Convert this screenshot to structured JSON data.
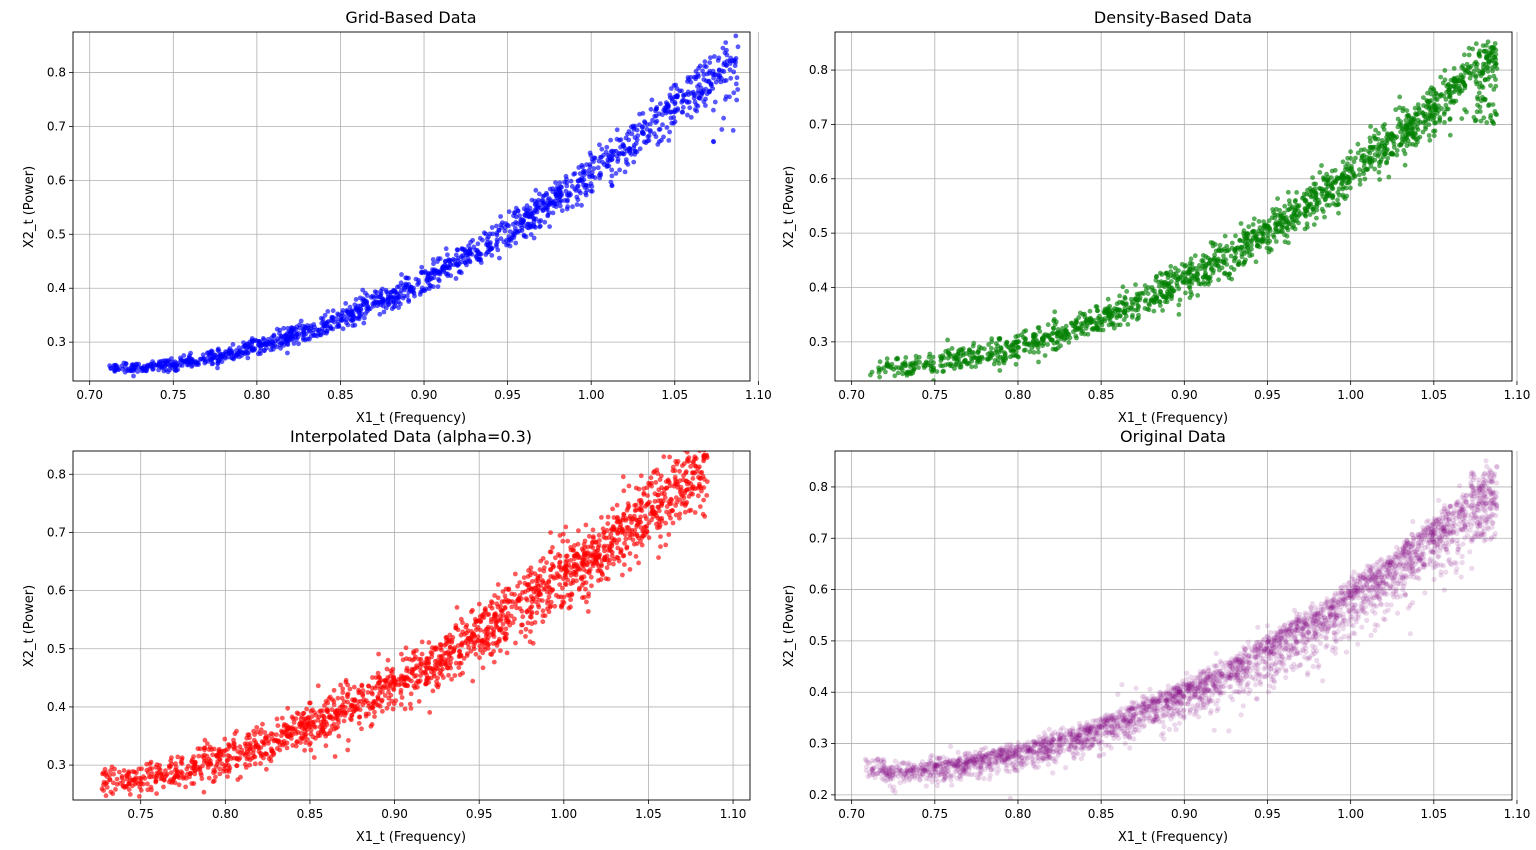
{
  "chart_data": [
    {
      "type": "scatter",
      "title": "Grid-Based Data",
      "xlabel": "X1_t (Frequency)",
      "ylabel": "X2_t (Power)",
      "xlim": [
        0.69,
        1.095
      ],
      "ylim": [
        0.228,
        0.875
      ],
      "xticks": [
        "0.70",
        "0.75",
        "0.80",
        "0.85",
        "0.90",
        "0.95",
        "1.00",
        "1.05",
        "1.10"
      ],
      "yticks": [
        "0.3",
        "0.4",
        "0.5",
        "0.6",
        "0.7",
        "0.8"
      ],
      "grid": true,
      "color": "#0000ff",
      "alpha": 0.65,
      "point_count": 1400,
      "pattern": "grid",
      "x_range": [
        0.71,
        1.088
      ],
      "y_range": [
        0.25,
        0.84
      ],
      "trend": "y ≈ 0.25 + 0.59·t^1.85, t = (x − 0.71)/0.378",
      "spread": 0.022
    },
    {
      "type": "scatter",
      "title": "Density-Based Data",
      "xlabel": "X1_t (Frequency)",
      "ylabel": "X2_t (Power)",
      "xlim": [
        0.69,
        1.097
      ],
      "ylim": [
        0.228,
        0.87
      ],
      "xticks": [
        "0.70",
        "0.75",
        "0.80",
        "0.85",
        "0.90",
        "0.95",
        "1.00",
        "1.05",
        "1.10"
      ],
      "yticks": [
        "0.3",
        "0.4",
        "0.5",
        "0.6",
        "0.7",
        "0.8"
      ],
      "grid": true,
      "color": "#008000",
      "alpha": 0.65,
      "point_count": 1600,
      "pattern": "density",
      "x_range": [
        0.71,
        1.088
      ],
      "y_range": [
        0.25,
        0.835
      ],
      "trend": "y ≈ 0.25 + 0.59·t^1.85, t = (x − 0.71)/0.378",
      "spread": 0.018
    },
    {
      "type": "scatter",
      "title": "Interpolated Data (alpha=0.3)",
      "xlabel": "X1_t (Frequency)",
      "ylabel": "X2_t (Power)",
      "xlim": [
        0.71,
        1.11
      ],
      "ylim": [
        0.24,
        0.84
      ],
      "xticks": [
        "0.75",
        "0.80",
        "0.85",
        "0.90",
        "0.95",
        "1.00",
        "1.05",
        "1.10"
      ],
      "yticks": [
        "0.3",
        "0.4",
        "0.5",
        "0.6",
        "0.7",
        "0.8"
      ],
      "grid": true,
      "color": "#ff0000",
      "alpha": 0.65,
      "point_count": 1800,
      "pattern": "interpolated",
      "x_range": [
        0.727,
        1.085
      ],
      "y_range": [
        0.27,
        0.815
      ],
      "trend": "y ≈ 0.27 + 0.54·t^1.6, t = (x − 0.727)/0.358",
      "spread": 0.025
    },
    {
      "type": "scatter",
      "title": "Original Data",
      "xlabel": "X1_t (Frequency)",
      "ylabel": "X2_t (Power)",
      "xlim": [
        0.69,
        1.097
      ],
      "ylim": [
        0.19,
        0.87
      ],
      "xticks": [
        "0.70",
        "0.75",
        "0.80",
        "0.85",
        "0.90",
        "0.95",
        "1.00",
        "1.05",
        "1.10"
      ],
      "yticks": [
        "0.2",
        "0.3",
        "0.4",
        "0.5",
        "0.6",
        "0.7",
        "0.8"
      ],
      "grid": true,
      "color": "#800080",
      "alpha": 0.15,
      "point_count": 3500,
      "pattern": "original",
      "x_range": [
        0.708,
        1.088
      ],
      "y_range": [
        0.225,
        0.84
      ],
      "trend": "y ≈ 0.25 + 0.59·t^1.85, t = (x − 0.71)/0.378",
      "spread": 0.02
    }
  ]
}
